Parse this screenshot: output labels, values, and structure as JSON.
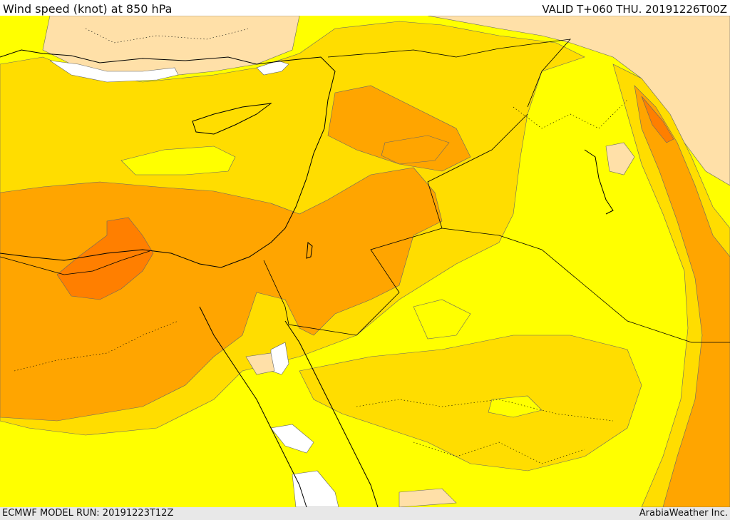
{
  "header": {
    "title": "Wind speed (knot) at 850 hPa",
    "valid_time": "VALID T+060 THU. 20191226T00Z"
  },
  "footer": {
    "model_run": "ECMWF MODEL RUN: 20191223T12Z",
    "credit": "ArabiaWeather Inc."
  },
  "palette": {
    "background": "#ffff00",
    "calm": "#ffffff",
    "light": "#ffe0a8",
    "moderate": "#ffdd00",
    "strong": "#ffa500",
    "very_strong": "#ff7f00",
    "contour": "#666666",
    "border": "#000000"
  },
  "icons": [
    "coastline-icon",
    "country-border-icon",
    "province-border-icon"
  ]
}
